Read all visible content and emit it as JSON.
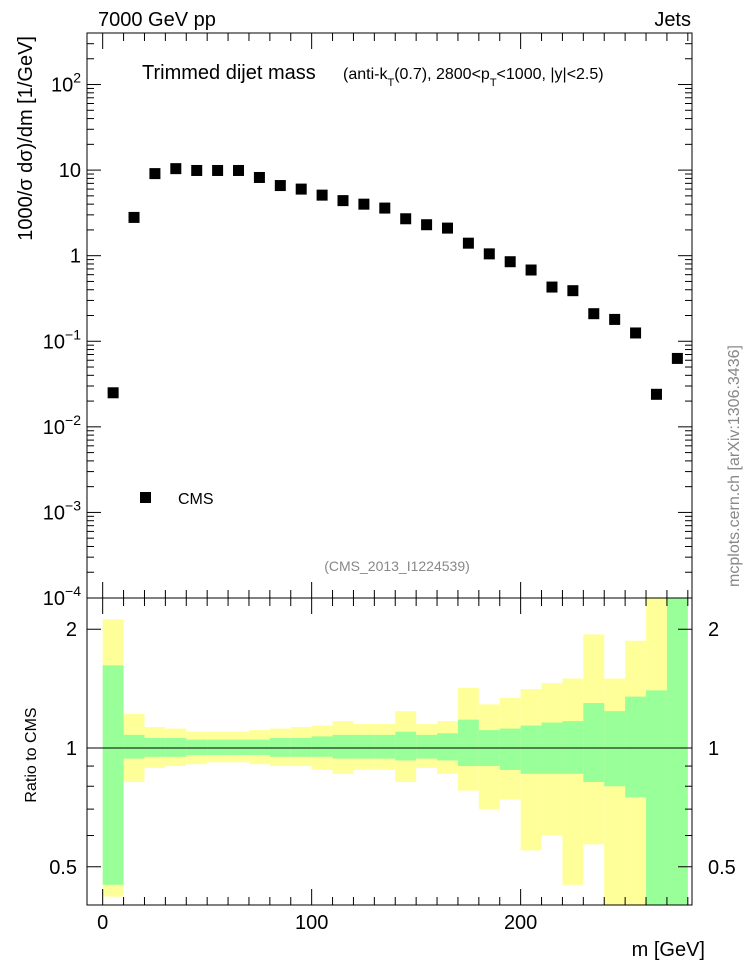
{
  "header": {
    "left": "7000 GeV pp",
    "right": "Jets"
  },
  "side_label": "mcplots.cern.ch [arXiv:1306.3436]",
  "watermark": "(CMS_2013_I1224539)",
  "colors": {
    "inner_band": "#99ff99",
    "outer_band": "#ffff99",
    "marker": "#000000"
  },
  "chart_data": [
    {
      "type": "scatter",
      "title": "Trimmed dijet mass",
      "title_note_parts": [
        "(anti-k",
        "T",
        "(0.7), 2800<p",
        "T",
        "<1000, |y|<2.5)"
      ],
      "ylabel": "1000/σ dσ)/dm [1/GeV]",
      "xlabel": "",
      "yscale": "log",
      "xlim": [
        -7.5,
        282
      ],
      "ylim": [
        0.0001,
        400
      ],
      "y_tick_labels": [
        {
          "value": 0.0001,
          "base": "10",
          "exp": "−4"
        },
        {
          "value": 0.001,
          "base": "10",
          "exp": "−3"
        },
        {
          "value": 0.01,
          "base": "10",
          "exp": "−2"
        },
        {
          "value": 0.1,
          "base": "10",
          "exp": "−1"
        },
        {
          "value": 1,
          "base": "1",
          "exp": ""
        },
        {
          "value": 10,
          "base": "10",
          "exp": ""
        },
        {
          "value": 100,
          "base": "10",
          "exp": "2"
        }
      ],
      "legend": {
        "position": "bottom-left",
        "entries": [
          "CMS"
        ]
      },
      "series": [
        {
          "name": "CMS",
          "x": [
            5,
            15,
            25,
            35,
            45,
            55,
            65,
            75,
            85,
            95,
            105,
            115,
            125,
            135,
            145,
            155,
            165,
            175,
            185,
            195,
            205,
            215,
            225,
            235,
            245,
            255,
            265,
            275
          ],
          "y": [
            0.025,
            2.8,
            9.1,
            10.4,
            9.9,
            9.9,
            9.9,
            8.2,
            6.6,
            6.0,
            5.1,
            4.4,
            4.0,
            3.6,
            2.7,
            2.3,
            2.1,
            1.4,
            1.05,
            0.85,
            0.68,
            0.43,
            0.39,
            0.21,
            0.18,
            0.125,
            0.024,
            0.063
          ]
        }
      ]
    },
    {
      "type": "area",
      "title": "",
      "ylabel": "Ratio to CMS",
      "xlabel": "m [GeV]",
      "yscale": "log",
      "xlim": [
        -7.5,
        282
      ],
      "ylim": [
        0.4,
        2.4
      ],
      "x_ticks": [
        0,
        100,
        200
      ],
      "y_ticks": [
        0.5,
        1,
        2
      ],
      "reference_line": 1,
      "bin_edges": [
        0,
        10,
        20,
        30,
        40,
        50,
        60,
        70,
        80,
        90,
        100,
        110,
        120,
        130,
        140,
        150,
        160,
        170,
        180,
        190,
        200,
        210,
        220,
        230,
        240,
        250,
        260,
        270,
        280
      ],
      "series": [
        {
          "band": "outer",
          "lo": [
            0.42,
            0.82,
            0.89,
            0.9,
            0.91,
            0.92,
            0.92,
            0.91,
            0.9,
            0.9,
            0.88,
            0.86,
            0.88,
            0.88,
            0.82,
            0.89,
            0.86,
            0.78,
            0.7,
            0.74,
            0.55,
            0.6,
            0.45,
            0.57,
            0.4,
            0.4,
            0.45,
            0.4
          ],
          "hi": [
            2.12,
            1.22,
            1.13,
            1.12,
            1.1,
            1.1,
            1.1,
            1.11,
            1.12,
            1.13,
            1.14,
            1.17,
            1.15,
            1.15,
            1.24,
            1.15,
            1.17,
            1.42,
            1.29,
            1.34,
            1.41,
            1.46,
            1.5,
            1.94,
            1.5,
            1.87,
            2.4,
            2.4
          ]
        },
        {
          "band": "inner",
          "lo": [
            0.45,
            0.94,
            0.95,
            0.95,
            0.96,
            0.96,
            0.96,
            0.96,
            0.95,
            0.95,
            0.95,
            0.94,
            0.94,
            0.94,
            0.93,
            0.94,
            0.93,
            0.9,
            0.9,
            0.88,
            0.86,
            0.86,
            0.86,
            0.82,
            0.8,
            0.75,
            0.4,
            0.4
          ],
          "hi": [
            1.62,
            1.08,
            1.06,
            1.06,
            1.05,
            1.05,
            1.05,
            1.05,
            1.06,
            1.06,
            1.07,
            1.08,
            1.08,
            1.08,
            1.1,
            1.08,
            1.09,
            1.18,
            1.11,
            1.12,
            1.14,
            1.16,
            1.17,
            1.3,
            1.24,
            1.35,
            1.4,
            2.4
          ]
        }
      ]
    }
  ]
}
